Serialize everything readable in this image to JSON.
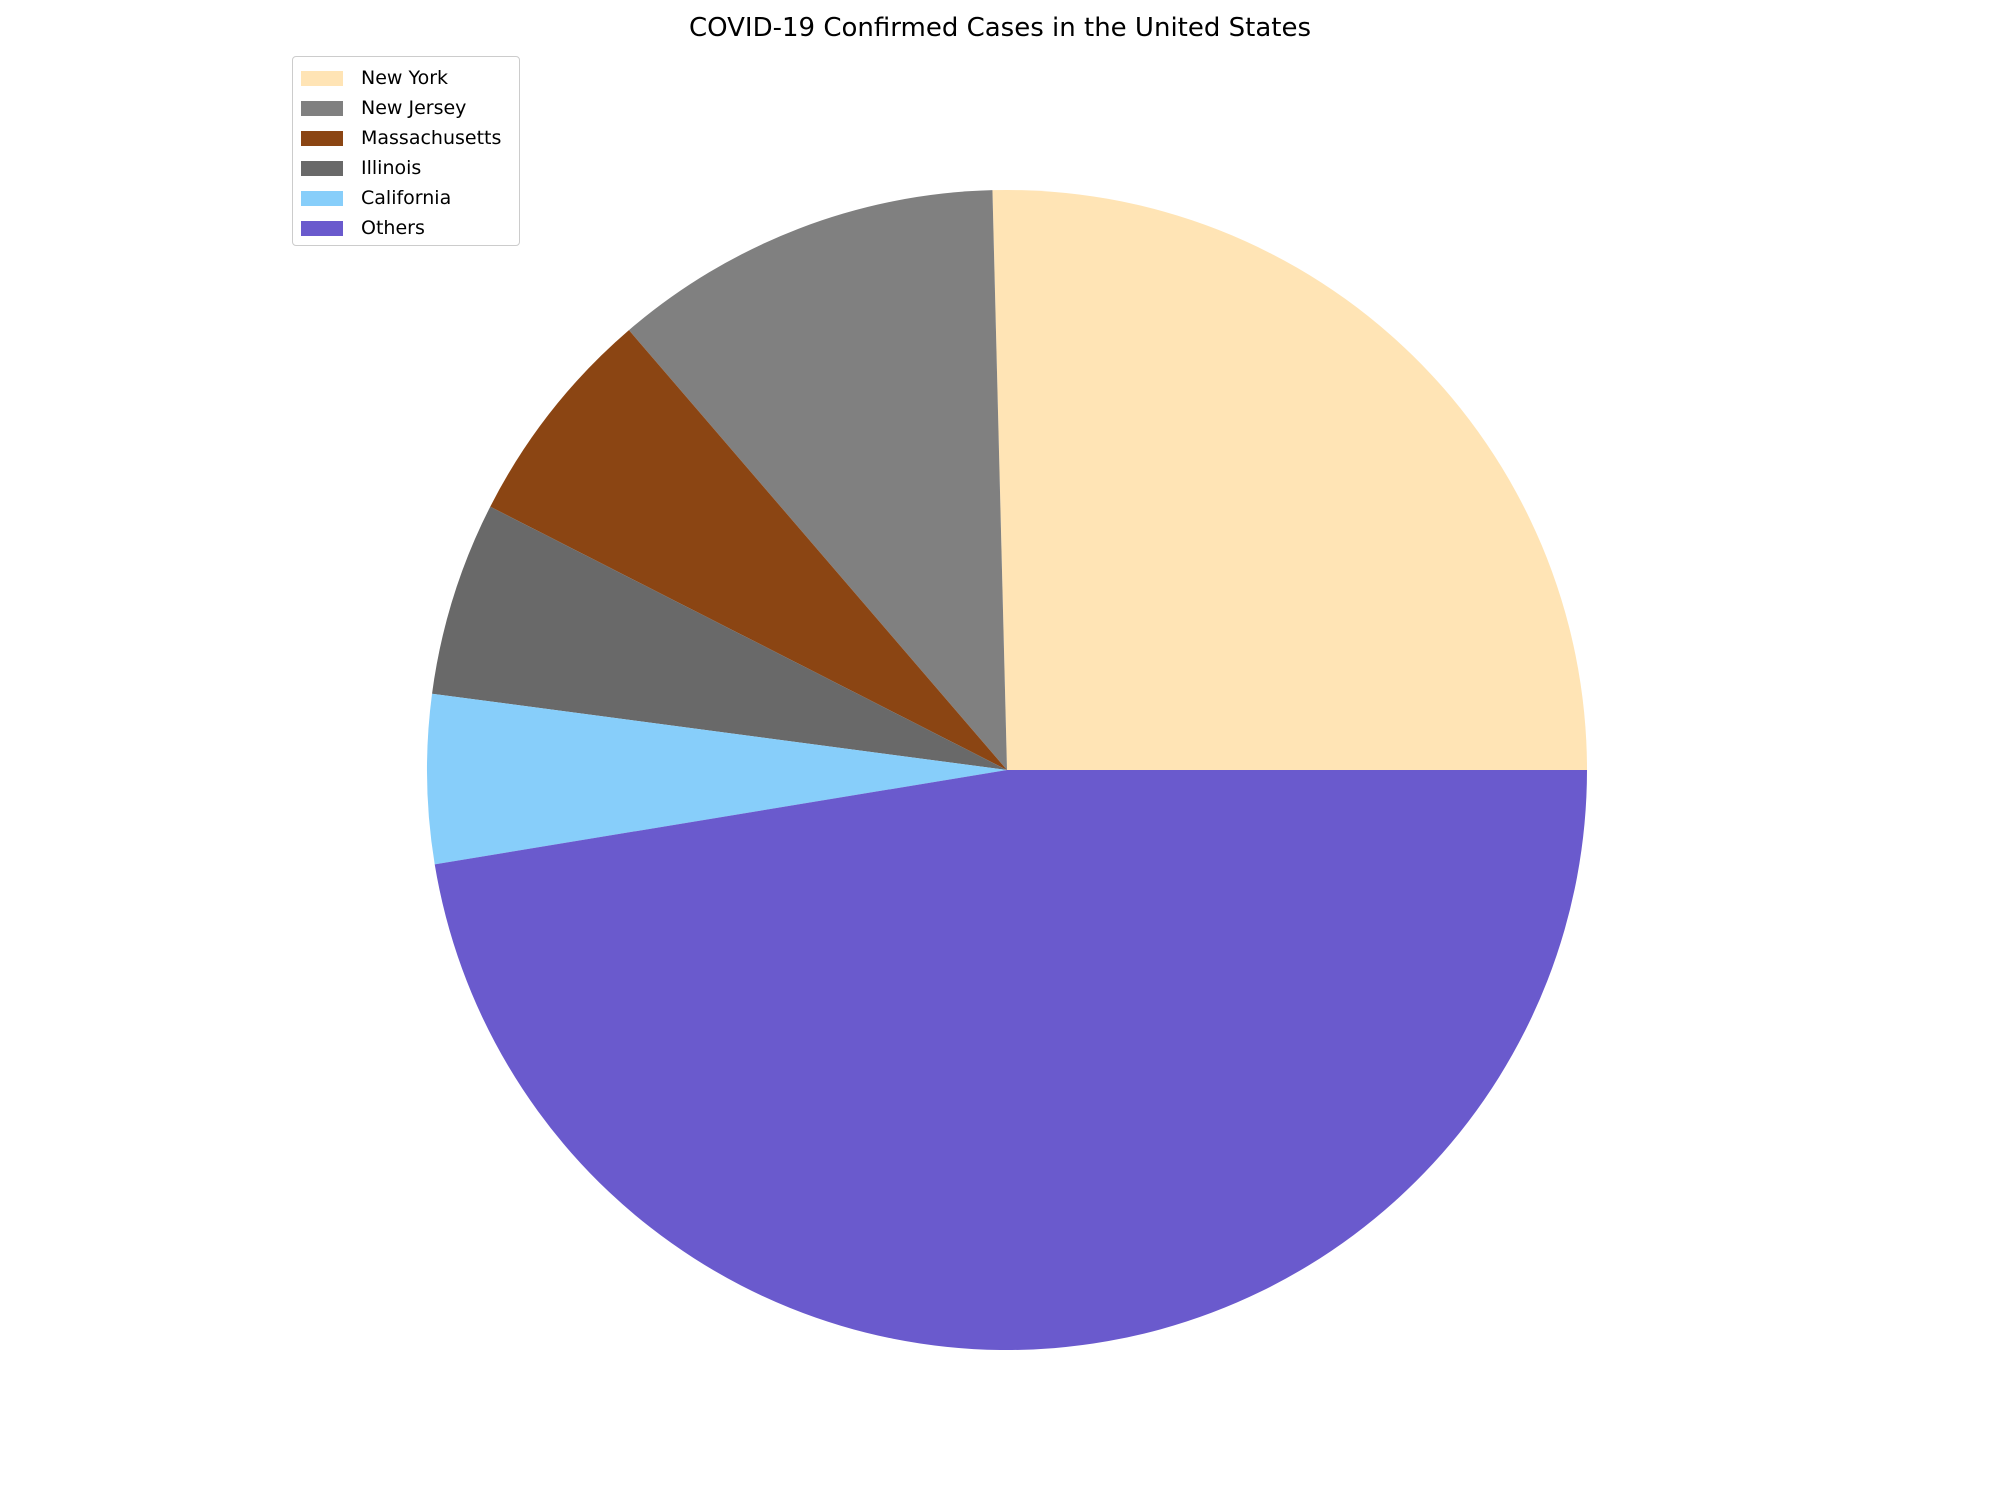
{
  "chart_data": {
    "type": "pie",
    "title": "COVID-19 Confirmed Cases in the United States",
    "legend_position": "top-left",
    "start_angle_deg": 0,
    "direction": "counterclockwise",
    "slices": [
      {
        "label": "New York",
        "value": 25.4,
        "color": "#FFE4B5"
      },
      {
        "label": "New Jersey",
        "value": 10.9,
        "color": "#808080"
      },
      {
        "label": "Massachusetts",
        "value": 6.2,
        "color": "#8B4513"
      },
      {
        "label": "Illinois",
        "value": 5.4,
        "color": "#696969"
      },
      {
        "label": "California",
        "value": 4.7,
        "color": "#87CEFA"
      },
      {
        "label": "Others",
        "value": 47.4,
        "color": "#6A5ACD"
      }
    ]
  }
}
